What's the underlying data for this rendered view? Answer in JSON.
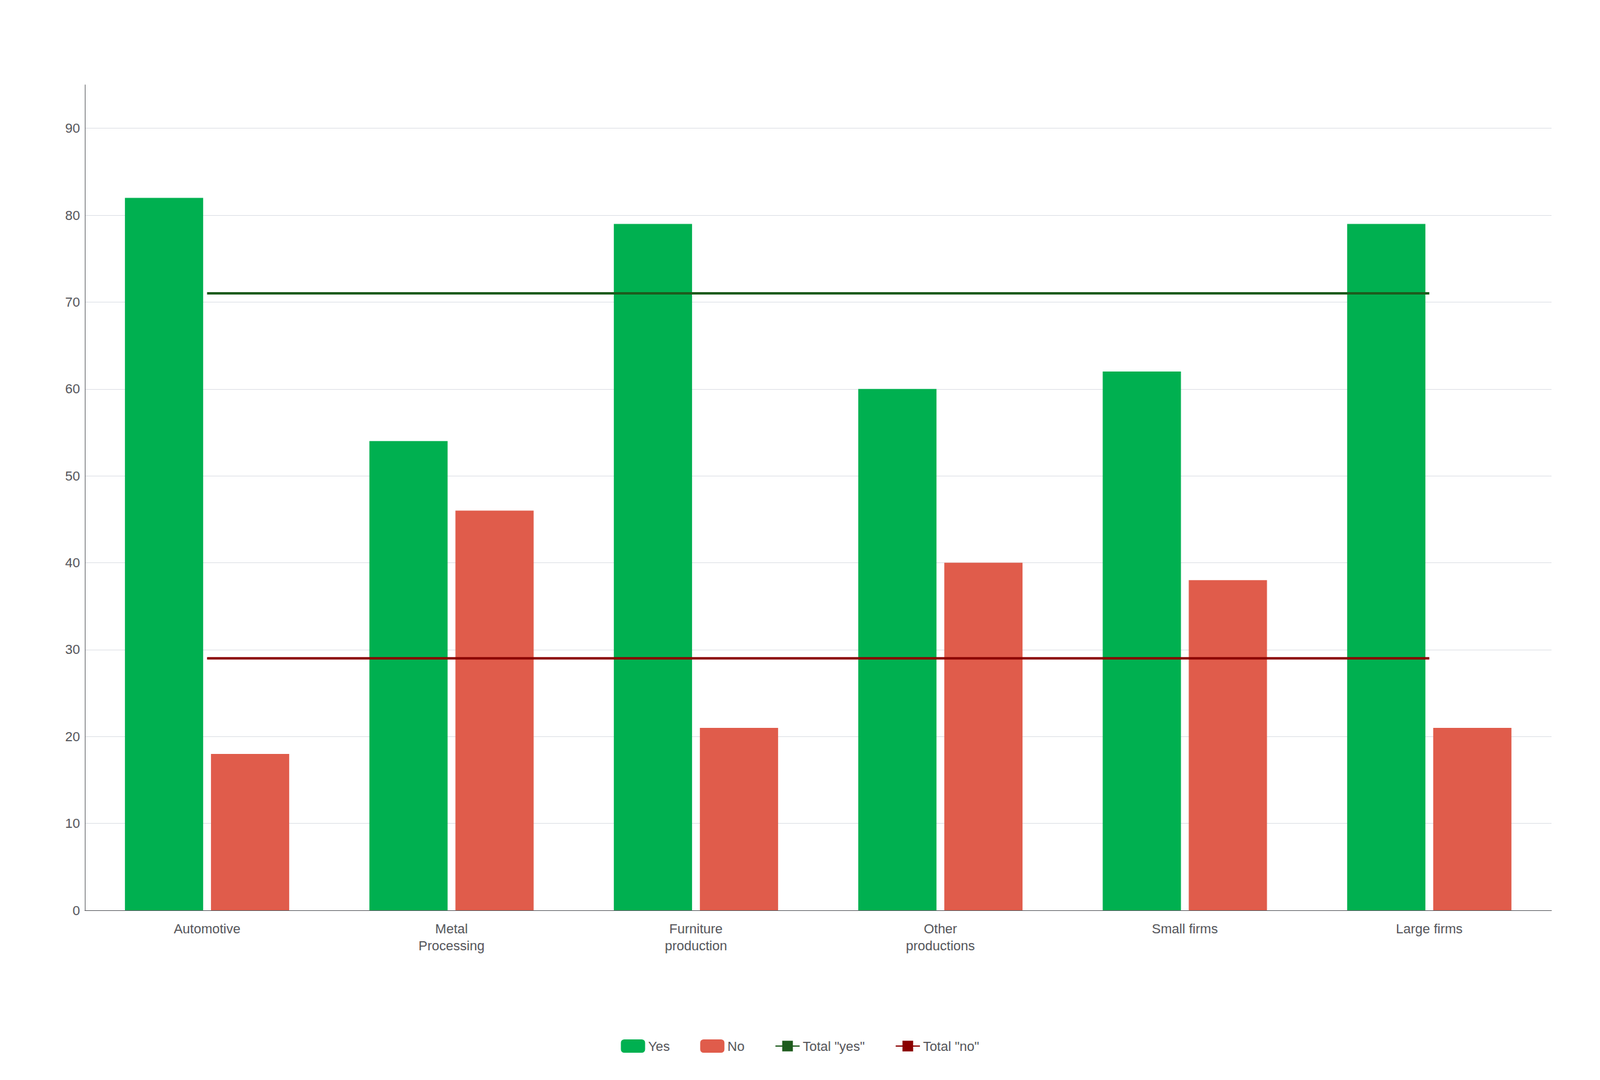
{
  "chart_data": {
    "type": "bar",
    "categories": [
      "Automotive",
      "Metal\nProcessing",
      "Furniture\nproduction",
      "Other\nproductions",
      "Small firms",
      "Large firms"
    ],
    "series": [
      {
        "name": "Yes",
        "color": "#00b050",
        "values": [
          82,
          54,
          79,
          60,
          62,
          79
        ]
      },
      {
        "name": "No",
        "color": "#e05c4b",
        "values": [
          18,
          46,
          21,
          40,
          38,
          21
        ]
      },
      {
        "name": "Total \"yes\"",
        "type": "line",
        "color": "#1e5c1e",
        "values": [
          71,
          71,
          71,
          71,
          71,
          71
        ]
      },
      {
        "name": "Total \"no\"",
        "type": "line",
        "color": "#8b0000",
        "values": [
          29,
          29,
          29,
          29,
          29,
          29
        ]
      }
    ],
    "ylim": [
      0,
      95
    ],
    "yticks": [
      0,
      10,
      20,
      30,
      40,
      50,
      60,
      70,
      80,
      90
    ],
    "grid": true,
    "legend": "bottom"
  }
}
